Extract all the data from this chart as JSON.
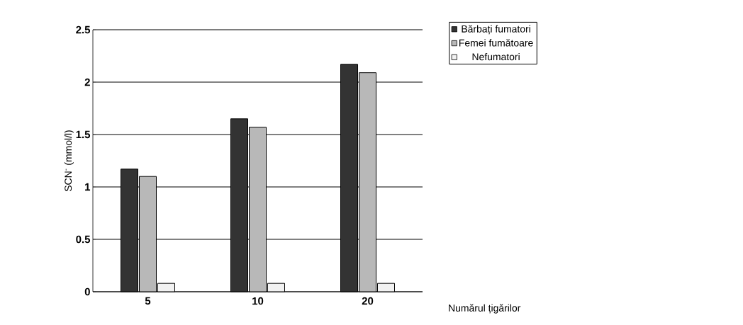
{
  "chart_data": {
    "type": "bar",
    "xlabel": "Numărul țigărilor",
    "ylabel": "SCN$^{-}$  (mmol/l)",
    "categories": [
      "5",
      "10",
      "20"
    ],
    "series": [
      {
        "name": "Bărbați fumatori",
        "color": "#333333",
        "values": [
          1.17,
          1.65,
          2.17
        ]
      },
      {
        "name": "Femei fumătoare",
        "color": "#b8b8b8",
        "values": [
          1.1,
          1.57,
          2.09
        ]
      },
      {
        "name": "Nefumatori",
        "color": "#f2f2f2",
        "values": [
          0.08,
          0.08,
          0.08
        ]
      }
    ],
    "ylim": [
      0,
      2.5
    ],
    "yticks": [
      0,
      0.5,
      1,
      1.5,
      2,
      2.5
    ],
    "grid": "y",
    "legend": "top right"
  }
}
